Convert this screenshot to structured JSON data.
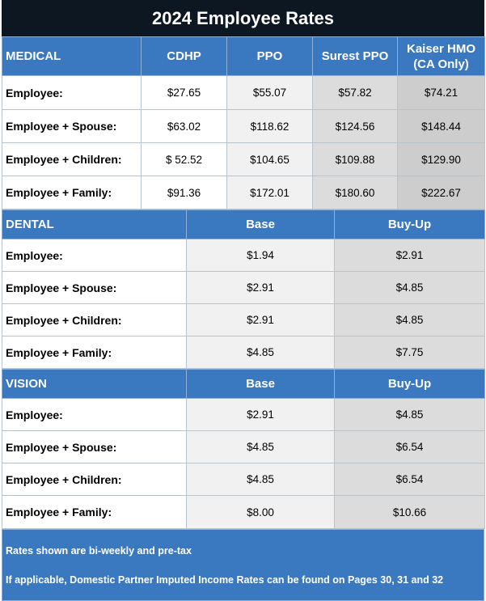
{
  "title": "2024 Employee Rates",
  "medical": {
    "section": "MEDICAL",
    "columns": [
      "CDHP",
      "PPO",
      "Surest PPO",
      "Kaiser HMO",
      "(CA Only)"
    ],
    "rows": [
      {
        "label": "Employee:",
        "values": [
          "$27.65",
          "$55.07",
          "$57.82",
          "$74.21"
        ]
      },
      {
        "label": "Employee + Spouse:",
        "values": [
          "$63.02",
          "$118.62",
          "$124.56",
          "$148.44"
        ]
      },
      {
        "label": "Employee + Children:",
        "values": [
          "$ 52.52",
          "$104.65",
          "$109.88",
          "$129.90"
        ]
      },
      {
        "label": "Employee + Family:",
        "values": [
          "$91.36",
          "$172.01",
          "$180.60",
          "$222.67"
        ]
      }
    ]
  },
  "dental": {
    "section": "DENTAL",
    "columns": [
      "Base",
      "Buy-Up"
    ],
    "rows": [
      {
        "label": "Employee:",
        "values": [
          "$1.94",
          "$2.91"
        ]
      },
      {
        "label": "Employee + Spouse:",
        "values": [
          "$2.91",
          "$4.85"
        ]
      },
      {
        "label": "Employee + Children:",
        "values": [
          "$2.91",
          "$4.85"
        ]
      },
      {
        "label": "Employee + Family:",
        "values": [
          "$4.85",
          "$7.75"
        ]
      }
    ]
  },
  "vision": {
    "section": "VISION",
    "columns": [
      "Base",
      "Buy-Up"
    ],
    "rows": [
      {
        "label": "Employee:",
        "values": [
          "$2.91",
          "$4.85"
        ]
      },
      {
        "label": "Employee + Spouse:",
        "values": [
          "$4.85",
          "$6.54"
        ]
      },
      {
        "label": "Employee + Children:",
        "values": [
          "$4.85",
          "$6.54"
        ]
      },
      {
        "label": "Employee + Family:",
        "values": [
          "$8.00",
          "$10.66"
        ]
      }
    ]
  },
  "footer": {
    "note1": "Rates shown are bi-weekly and pre-tax",
    "note2": "If applicable, Domestic Partner Imputed Income Rates can be found on Pages 30, 31 and 32"
  }
}
